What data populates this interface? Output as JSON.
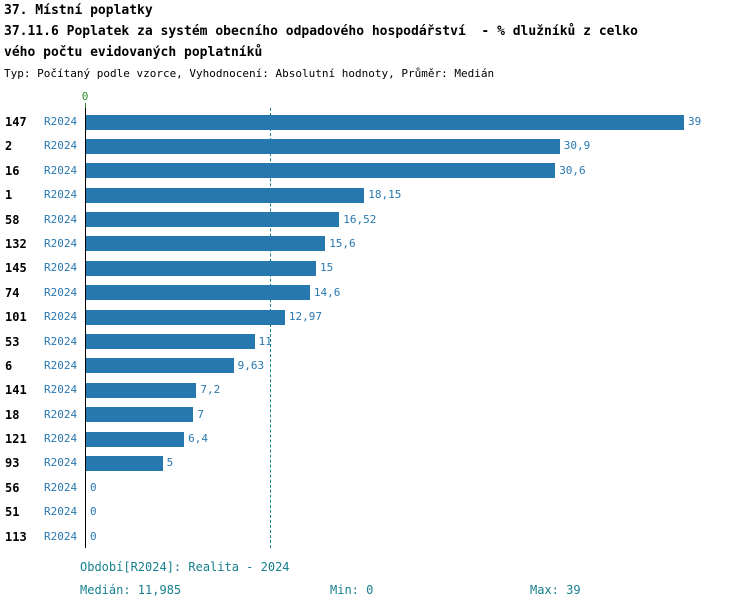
{
  "header": {
    "title_line1": "37. Místní poplatky",
    "title_line2": "37.11.6 Poplatek za systém obecního odpadového hospodářství  - % dlužníků z celko",
    "title_line3": "vého počtu evidovaných poplatníků",
    "subtitle": "Typ: Počítaný podle vzorce, Vyhodnocení: Absolutní hodnoty, Průměr: Medián"
  },
  "chart_data": {
    "type": "bar",
    "orientation": "horizontal",
    "xlim": [
      0,
      39
    ],
    "axis_origin_label": "0",
    "median_line_value": 11.985,
    "bar_color": "#2878b0",
    "median_line_color": "#17808f",
    "grid": false,
    "rows": [
      {
        "id": "147",
        "period": "R2024",
        "value": 39,
        "label": "39"
      },
      {
        "id": "2",
        "period": "R2024",
        "value": 30.9,
        "label": "30,9"
      },
      {
        "id": "16",
        "period": "R2024",
        "value": 30.6,
        "label": "30,6"
      },
      {
        "id": "1",
        "period": "R2024",
        "value": 18.15,
        "label": "18,15"
      },
      {
        "id": "58",
        "period": "R2024",
        "value": 16.52,
        "label": "16,52"
      },
      {
        "id": "132",
        "period": "R2024",
        "value": 15.6,
        "label": "15,6"
      },
      {
        "id": "145",
        "period": "R2024",
        "value": 15,
        "label": "15"
      },
      {
        "id": "74",
        "period": "R2024",
        "value": 14.6,
        "label": "14,6"
      },
      {
        "id": "101",
        "period": "R2024",
        "value": 12.97,
        "label": "12,97"
      },
      {
        "id": "53",
        "period": "R2024",
        "value": 11,
        "label": "11"
      },
      {
        "id": "6",
        "period": "R2024",
        "value": 9.63,
        "label": "9,63"
      },
      {
        "id": "141",
        "period": "R2024",
        "value": 7.2,
        "label": "7,2"
      },
      {
        "id": "18",
        "period": "R2024",
        "value": 7,
        "label": "7"
      },
      {
        "id": "121",
        "period": "R2024",
        "value": 6.4,
        "label": "6,4"
      },
      {
        "id": "93",
        "period": "R2024",
        "value": 5,
        "label": "5"
      },
      {
        "id": "56",
        "period": "R2024",
        "value": 0,
        "label": "0"
      },
      {
        "id": "51",
        "period": "R2024",
        "value": 0,
        "label": "0"
      },
      {
        "id": "113",
        "period": "R2024",
        "value": 0,
        "label": "0"
      }
    ]
  },
  "footer": {
    "period_label": "Období[R2024]: Realita - 2024",
    "median_label": "Medián: 11,985",
    "min_label": "Min: 0",
    "max_label": "Max: 39"
  }
}
